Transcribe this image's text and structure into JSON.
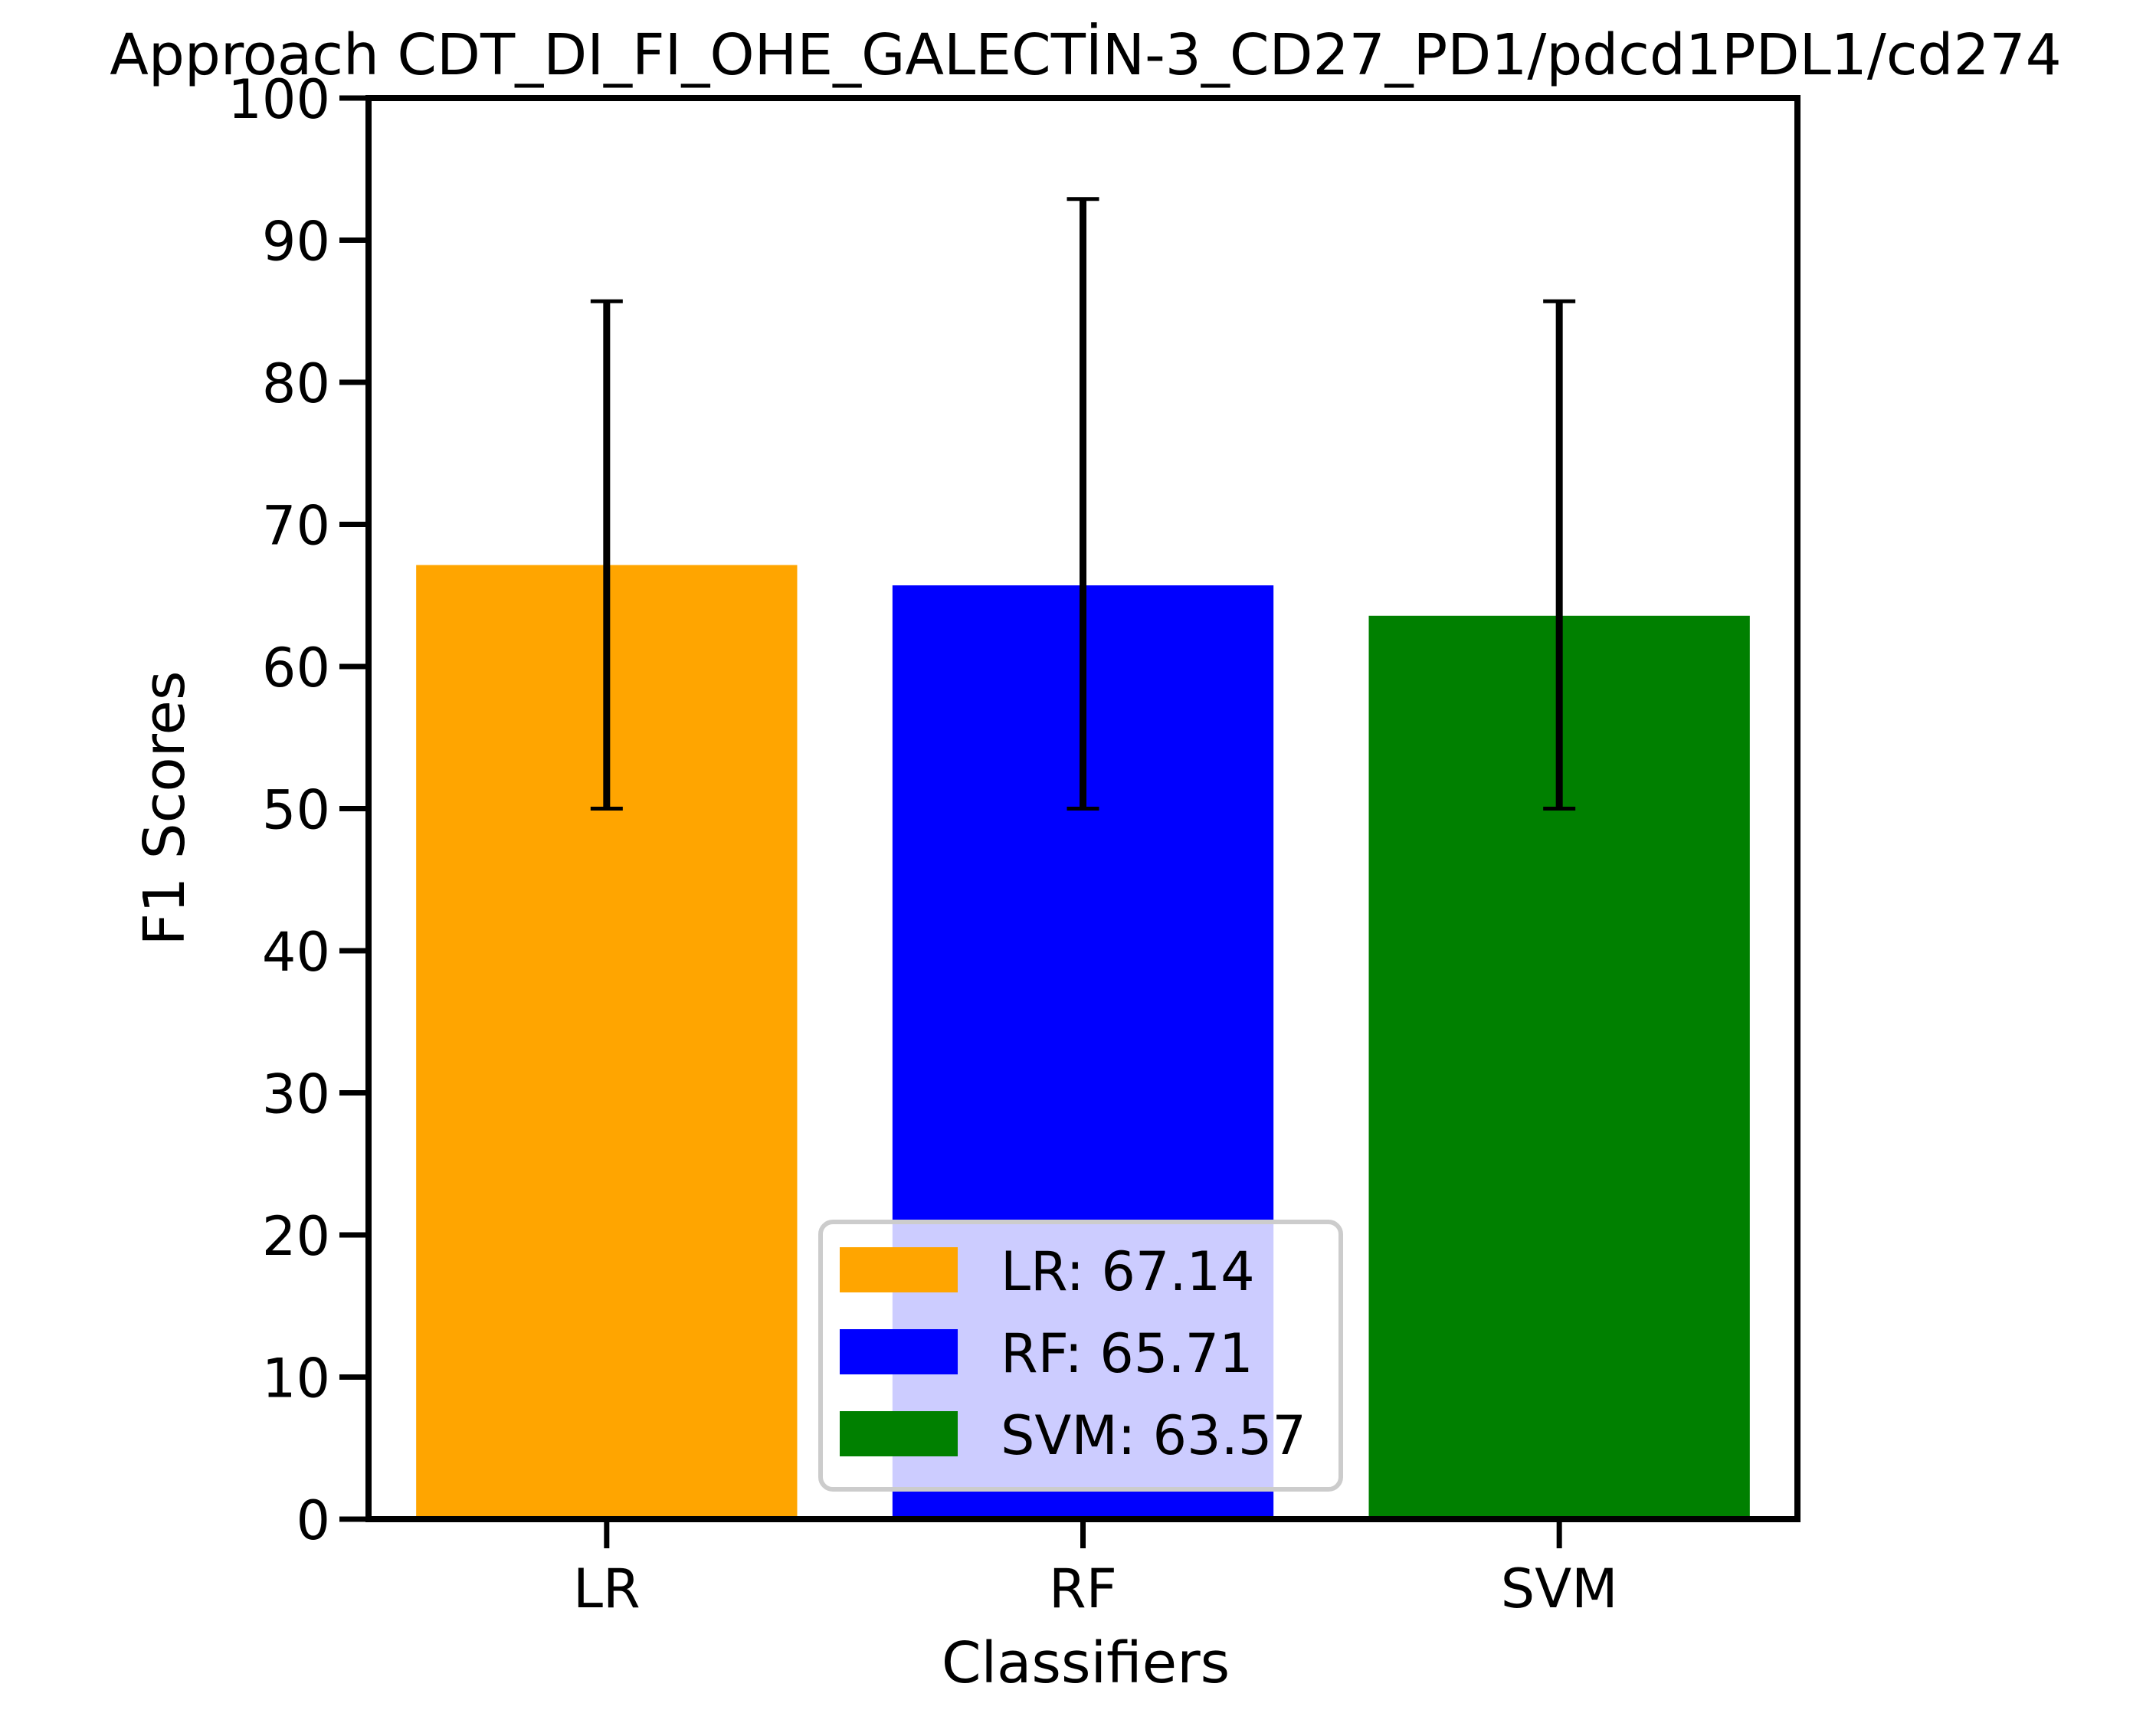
{
  "chart_data": {
    "type": "bar",
    "title": "Approach CDT_DI_FI_OHE_GALECTİN-3_CD27_PD1/pdcd1PDL1/cd274",
    "xlabel": "Classifiers",
    "ylabel": "F1 Scores",
    "ylim": [
      0,
      100
    ],
    "yticks": [
      "0",
      "10",
      "20",
      "30",
      "40",
      "50",
      "60",
      "70",
      "80",
      "90",
      "100"
    ],
    "categories": [
      "LR",
      "RF",
      "SVM"
    ],
    "values": [
      67.14,
      65.71,
      63.57
    ],
    "error_low": [
      50.0,
      50.0,
      50.0
    ],
    "error_high": [
      85.7,
      92.9,
      85.7
    ],
    "colors": [
      "#ffa500",
      "#0000ff",
      "#008000"
    ],
    "grid": false,
    "legend": {
      "placement": "lower-center",
      "entries": [
        "LR: 67.14",
        "RF: 65.71",
        "SVM: 63.57"
      ]
    }
  }
}
